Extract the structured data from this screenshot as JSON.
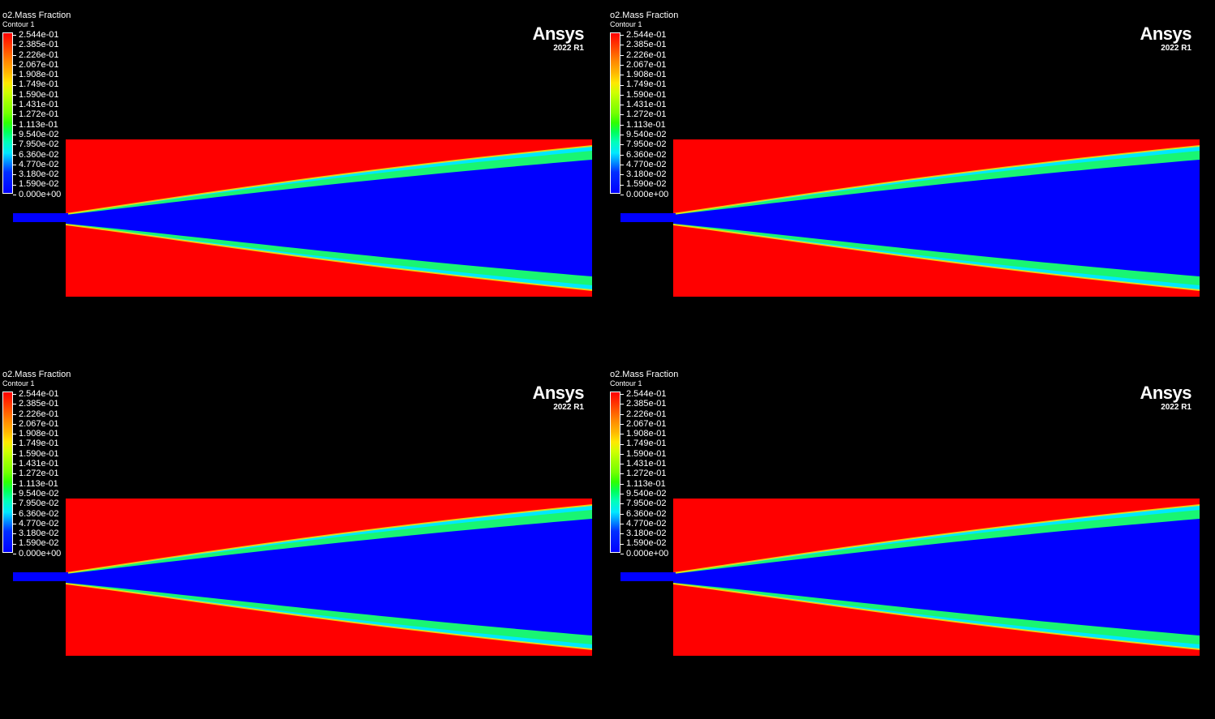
{
  "panels": [
    {
      "title": "o2.Mass Fraction",
      "subtitle": "Contour 1",
      "logo": {
        "name": "Ansys",
        "version": "2022 R1"
      }
    },
    {
      "title": "o2.Mass Fraction",
      "subtitle": "Contour 1",
      "logo": {
        "name": "Ansys",
        "version": "2022 R1"
      }
    },
    {
      "title": "o2.Mass Fraction",
      "subtitle": "Contour 1",
      "logo": {
        "name": "Ansys",
        "version": "2022 R1"
      }
    },
    {
      "title": "o2.Mass Fraction",
      "subtitle": "Contour 1",
      "logo": {
        "name": "Ansys",
        "version": "2022 R1"
      }
    }
  ],
  "legend_levels": [
    "2.544e-01",
    "2.385e-01",
    "2.226e-01",
    "2.067e-01",
    "1.908e-01",
    "1.749e-01",
    "1.590e-01",
    "1.431e-01",
    "1.272e-01",
    "1.113e-01",
    "9.540e-02",
    "7.950e-02",
    "6.360e-02",
    "4.770e-02",
    "3.180e-02",
    "1.590e-02",
    "0.000e+00"
  ],
  "colors": {
    "background": "#000000",
    "high": "#ff0000",
    "low": "#0000ff"
  }
}
